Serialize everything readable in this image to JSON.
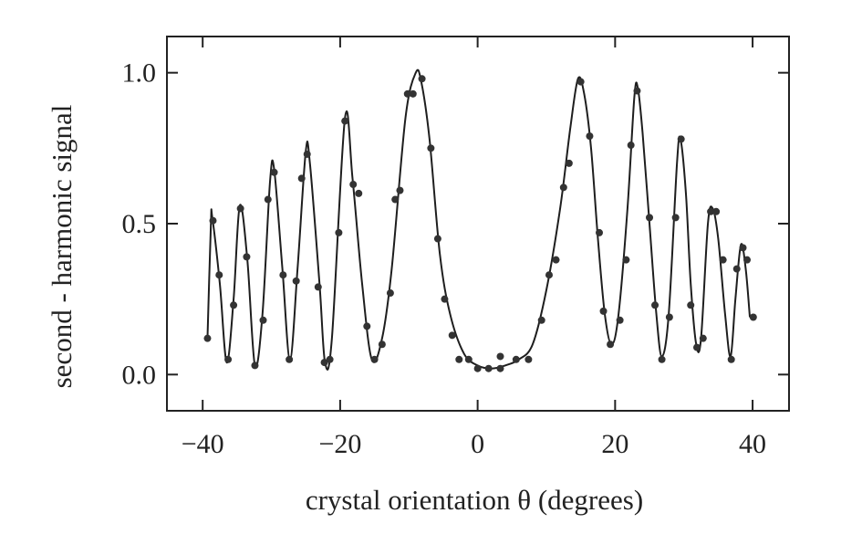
{
  "chart_data": {
    "type": "line",
    "x_label": "crystal orientation θ  (degrees)",
    "y_label": "second - harmonic signal",
    "xlim": [
      -45.2,
      45.3
    ],
    "ylim": [
      -0.12,
      1.12
    ],
    "xticks": [
      {
        "value": -40,
        "label": "−40"
      },
      {
        "value": -20,
        "label": "−20"
      },
      0,
      20,
      40
    ],
    "yticks": [
      {
        "value": 0,
        "label": "0.0"
      },
      {
        "value": 0.5,
        "label": "0.5"
      },
      {
        "value": 1,
        "label": "1.0"
      }
    ],
    "series": [
      {
        "style": "line",
        "color": "#1e1e1e",
        "x": [
          -39.3,
          -38.8,
          -38.6,
          -37.5,
          -36.5,
          -35.5,
          -34.6,
          -33.5,
          -32.4,
          -31.3,
          -30.2,
          -29.6,
          -28.4,
          -27.3,
          -26.2,
          -25.0,
          -24.4,
          -23.0,
          -22.2,
          -21.2,
          -19.3,
          -18.2,
          -16.8,
          -15.4,
          -13.9,
          -12.5,
          -10.5,
          -9.0,
          -8.2,
          -7.0,
          -5.5,
          -4.0,
          -2.0,
          0,
          2,
          4,
          6,
          8,
          10,
          12,
          13.5,
          14.6,
          15.5,
          16.5,
          17.5,
          18.5,
          19.5,
          20.5,
          21.8,
          22.8,
          23.3,
          24.0,
          25.0,
          26.0,
          26.8,
          27.8,
          29.0,
          29.5,
          30.3,
          31.0,
          31.8,
          32.5,
          33.5,
          34.2,
          35.0,
          36.0,
          36.8,
          37.5,
          38.3,
          39.0,
          39.6
        ],
        "values": [
          0.12,
          0.5,
          0.52,
          0.3,
          0.04,
          0.25,
          0.56,
          0.38,
          0.03,
          0.2,
          0.64,
          0.68,
          0.35,
          0.05,
          0.35,
          0.74,
          0.7,
          0.3,
          0.04,
          0.12,
          0.85,
          0.65,
          0.3,
          0.05,
          0.12,
          0.35,
          0.85,
          1.0,
          0.97,
          0.78,
          0.4,
          0.2,
          0.07,
          0.03,
          0.02,
          0.03,
          0.05,
          0.1,
          0.28,
          0.55,
          0.82,
          0.98,
          0.93,
          0.75,
          0.45,
          0.2,
          0.1,
          0.2,
          0.55,
          0.92,
          0.95,
          0.8,
          0.5,
          0.2,
          0.06,
          0.2,
          0.7,
          0.78,
          0.6,
          0.3,
          0.1,
          0.12,
          0.5,
          0.55,
          0.45,
          0.2,
          0.06,
          0.25,
          0.43,
          0.35,
          0.19
        ]
      },
      {
        "style": "markers",
        "color": "#333333",
        "x": [
          -39.3,
          -38.5,
          -37.6,
          -36.3,
          -35.5,
          -34.5,
          -33.6,
          -32.4,
          -31.2,
          -30.5,
          -29.6,
          -28.3,
          -27.4,
          -26.4,
          -25.6,
          -24.8,
          -23.2,
          -22.3,
          -21.5,
          -20.2,
          -19.3,
          -18.1,
          -17.3,
          -16.1,
          -15.0,
          -13.9,
          -12.7,
          -12.0,
          -11.3,
          -10.2,
          -9.4,
          -8.1,
          -6.8,
          -5.8,
          -4.8,
          -3.7,
          -2.7,
          -1.3,
          0,
          1.6,
          3.3,
          3.3,
          5.6,
          7.4,
          9.3,
          10.4,
          11.4,
          12.5,
          13.3,
          15.0,
          16.3,
          17.7,
          18.3,
          19.3,
          20.7,
          21.6,
          22.3,
          23.2,
          25.0,
          25.8,
          26.8,
          27.9,
          28.8,
          29.6,
          31.0,
          31.9,
          32.8,
          33.9,
          34.7,
          35.7,
          36.9,
          37.7,
          38.6,
          39.2,
          40.1
        ],
        "values": [
          0.12,
          0.51,
          0.33,
          0.05,
          0.23,
          0.55,
          0.39,
          0.03,
          0.18,
          0.58,
          0.67,
          0.33,
          0.05,
          0.31,
          0.65,
          0.73,
          0.29,
          0.04,
          0.05,
          0.47,
          0.84,
          0.63,
          0.6,
          0.16,
          0.05,
          0.1,
          0.27,
          0.58,
          0.61,
          0.93,
          0.93,
          0.98,
          0.75,
          0.45,
          0.25,
          0.13,
          0.05,
          0.05,
          0.02,
          0.02,
          0.06,
          0.02,
          0.05,
          0.05,
          0.18,
          0.33,
          0.38,
          0.62,
          0.7,
          0.97,
          0.79,
          0.47,
          0.21,
          0.1,
          0.18,
          0.38,
          0.76,
          0.94,
          0.52,
          0.23,
          0.05,
          0.19,
          0.52,
          0.78,
          0.23,
          0.09,
          0.12,
          0.54,
          0.54,
          0.38,
          0.05,
          0.35,
          0.42,
          0.38,
          0.19
        ]
      }
    ]
  }
}
